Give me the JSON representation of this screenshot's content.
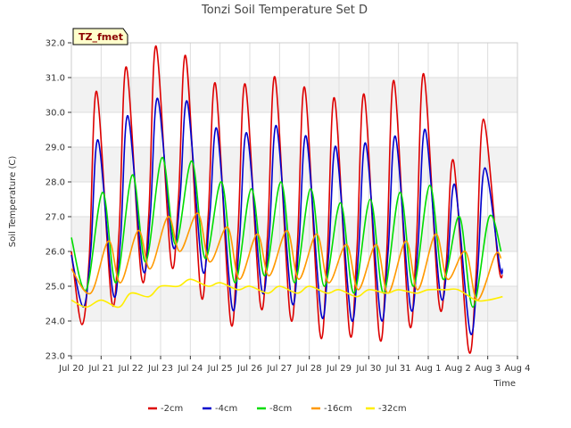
{
  "chart_data": {
    "type": "line",
    "title": "Tonzi Soil Temperature Set D",
    "xlabel": "Time",
    "ylabel": "Soil Temperature (C)",
    "badge": "TZ_fmet",
    "ylim": [
      23.0,
      32.0
    ],
    "yticks": [
      23.0,
      24.0,
      25.0,
      26.0,
      27.0,
      28.0,
      29.0,
      30.0,
      31.0,
      32.0
    ],
    "ytick_labels": [
      "23.0",
      "24.0",
      "25.0",
      "26.0",
      "27.0",
      "28.0",
      "29.0",
      "30.0",
      "31.0",
      "32.0"
    ],
    "xlim": [
      0,
      15
    ],
    "xticks": [
      0,
      1,
      2,
      3,
      4,
      5,
      6,
      7,
      8,
      9,
      10,
      11,
      12,
      13,
      14,
      15
    ],
    "xtick_labels": [
      "Jul 20",
      "Jul 21",
      "Jul 22",
      "Jul 23",
      "Jul 24",
      "Jul 25",
      "Jul 26",
      "Jul 27",
      "Jul 28",
      "Jul 29",
      "Jul 30",
      "Jul 31",
      "Aug 1",
      "Aug 2",
      "Aug 3",
      "Aug 4"
    ],
    "legend_position": "bottom",
    "series": [
      {
        "name": "-2cm",
        "color": "#dd0000",
        "x": [
          0.0,
          0.35,
          0.6,
          0.85,
          1.35,
          1.6,
          1.85,
          2.35,
          2.6,
          2.85,
          3.35,
          3.6,
          3.85,
          4.35,
          4.6,
          4.85,
          5.35,
          5.6,
          5.85,
          6.35,
          6.6,
          6.85,
          7.35,
          7.6,
          7.85,
          8.35,
          8.6,
          8.85,
          9.35,
          9.6,
          9.85,
          10.35,
          10.6,
          10.85,
          11.35,
          11.6,
          11.85,
          12.35,
          12.6,
          12.85,
          13.35,
          13.6,
          13.85,
          14.35,
          14.5
        ],
        "y": [
          26.0,
          23.9,
          25.8,
          30.6,
          24.6,
          26.5,
          31.3,
          25.3,
          27.0,
          31.9,
          25.7,
          27.5,
          31.6,
          24.8,
          27.0,
          30.8,
          24.0,
          26.5,
          30.8,
          24.5,
          26.5,
          31.0,
          24.2,
          26.2,
          30.7,
          23.7,
          25.8,
          30.4,
          23.7,
          26.0,
          30.5,
          23.6,
          25.9,
          30.9,
          24.0,
          26.2,
          31.1,
          24.6,
          25.6,
          28.6,
          23.2,
          25.2,
          29.8,
          25.7,
          25.3
        ]
      },
      {
        "name": "-4cm",
        "color": "#0000cc",
        "x": [
          0.0,
          0.4,
          0.65,
          0.9,
          1.4,
          1.65,
          1.9,
          2.4,
          2.65,
          2.9,
          3.4,
          3.65,
          3.9,
          4.4,
          4.65,
          4.9,
          5.4,
          5.65,
          5.9,
          6.4,
          6.65,
          6.9,
          7.4,
          7.65,
          7.9,
          8.4,
          8.65,
          8.9,
          9.4,
          9.65,
          9.9,
          10.4,
          10.65,
          10.9,
          11.4,
          11.65,
          11.9,
          12.4,
          12.65,
          12.9,
          13.4,
          13.65,
          13.9,
          14.4,
          14.5
        ],
        "y": [
          25.9,
          24.4,
          26.0,
          29.2,
          24.8,
          26.3,
          29.9,
          25.5,
          27.0,
          30.4,
          26.2,
          27.5,
          30.3,
          25.5,
          27.0,
          29.5,
          24.4,
          26.3,
          29.4,
          24.9,
          26.4,
          29.6,
          24.6,
          26.2,
          29.3,
          24.2,
          25.9,
          29.0,
          24.1,
          25.9,
          29.1,
          24.1,
          26.0,
          29.3,
          24.4,
          26.1,
          29.5,
          24.8,
          25.7,
          27.9,
          23.7,
          25.3,
          28.4,
          25.6,
          25.5
        ]
      },
      {
        "name": "-8cm",
        "color": "#00dd00",
        "x": [
          0.0,
          0.5,
          1.05,
          1.5,
          2.05,
          2.5,
          3.05,
          3.5,
          4.05,
          4.5,
          5.05,
          5.5,
          6.05,
          6.5,
          7.05,
          7.5,
          8.05,
          8.5,
          9.05,
          9.5,
          10.05,
          10.5,
          11.05,
          11.5,
          12.05,
          12.5,
          13.05,
          13.5,
          14.05,
          14.45
        ],
        "y": [
          26.4,
          24.9,
          27.7,
          25.1,
          28.2,
          25.7,
          28.7,
          26.2,
          28.6,
          25.8,
          28.0,
          25.1,
          27.8,
          25.3,
          28.0,
          25.1,
          27.8,
          25.0,
          27.4,
          24.8,
          27.5,
          24.8,
          27.7,
          25.0,
          27.9,
          25.2,
          27.0,
          24.4,
          27.0,
          26.0
        ]
      },
      {
        "name": "-16cm",
        "color": "#ff9900",
        "x": [
          0.0,
          0.65,
          1.25,
          1.65,
          2.25,
          2.65,
          3.25,
          3.65,
          4.25,
          4.65,
          5.25,
          5.65,
          6.25,
          6.65,
          7.25,
          7.65,
          8.25,
          8.65,
          9.25,
          9.65,
          10.25,
          10.65,
          11.25,
          11.65,
          12.25,
          12.65,
          13.25,
          13.65,
          14.25,
          14.45
        ],
        "y": [
          25.5,
          24.8,
          26.3,
          25.1,
          26.6,
          25.5,
          27.0,
          26.0,
          27.1,
          25.7,
          26.7,
          25.2,
          26.5,
          25.3,
          26.6,
          25.2,
          26.5,
          25.1,
          26.2,
          24.9,
          26.2,
          24.8,
          26.3,
          24.9,
          26.5,
          25.2,
          26.0,
          24.6,
          25.9,
          25.8
        ]
      },
      {
        "name": "-32cm",
        "color": "#ffee00",
        "x": [
          0.0,
          0.5,
          1.0,
          1.6,
          2.0,
          2.6,
          3.0,
          3.6,
          4.0,
          4.6,
          5.0,
          5.6,
          6.0,
          6.6,
          7.0,
          7.6,
          8.0,
          8.6,
          9.0,
          9.6,
          10.0,
          10.6,
          11.0,
          11.6,
          12.0,
          12.6,
          13.0,
          13.6,
          14.0,
          14.5
        ],
        "y": [
          24.6,
          24.4,
          24.6,
          24.4,
          24.8,
          24.7,
          25.0,
          25.0,
          25.2,
          25.0,
          25.1,
          24.9,
          25.0,
          24.8,
          25.0,
          24.8,
          25.0,
          24.8,
          24.9,
          24.7,
          24.9,
          24.8,
          24.9,
          24.8,
          24.9,
          24.9,
          24.9,
          24.6,
          24.6,
          24.7
        ]
      }
    ]
  }
}
